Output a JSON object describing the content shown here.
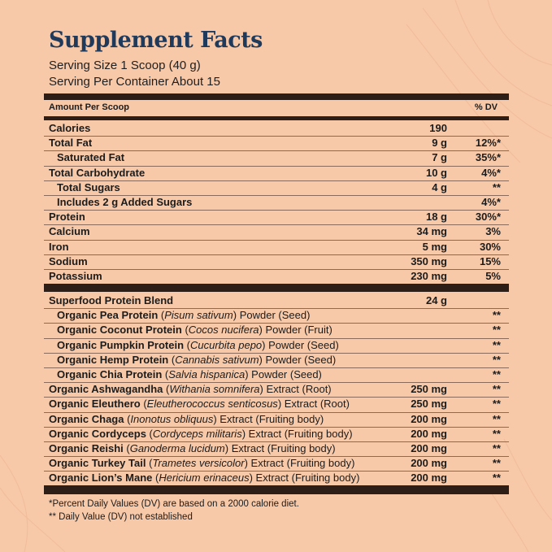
{
  "title": "Supplement Facts",
  "serving_size": "Serving Size 1 Scoop (40 g)",
  "servings_per_container": "Serving Per Container  About 15",
  "header": {
    "amount": "Amount Per Scoop",
    "dv": "% DV"
  },
  "nutrients": [
    {
      "name": "Calories",
      "amount": "190",
      "dv": "",
      "indent": false
    },
    {
      "name": "Total Fat",
      "amount": "9 g",
      "dv": "12%*",
      "indent": false
    },
    {
      "name": "Saturated Fat",
      "amount": "7 g",
      "dv": "35%*",
      "indent": true
    },
    {
      "name": "Total Carbohydrate",
      "amount": "10 g",
      "dv": "4%*",
      "indent": false
    },
    {
      "name": "Total Sugars",
      "amount": "4 g",
      "dv": "**",
      "indent": true
    },
    {
      "name": "Includes 2 g Added Sugars",
      "amount": "",
      "dv": "4%*",
      "indent": true
    },
    {
      "name": "Protein",
      "amount": "18 g",
      "dv": "30%*",
      "indent": false
    },
    {
      "name": "Calcium",
      "amount": "34 mg",
      "dv": "3%",
      "indent": false
    },
    {
      "name": "Iron",
      "amount": "5 mg",
      "dv": "30%",
      "indent": false
    },
    {
      "name": "Sodium",
      "amount": "350 mg",
      "dv": "15%",
      "indent": false
    },
    {
      "name": "Potassium",
      "amount": "230 mg",
      "dv": "5%",
      "indent": false
    }
  ],
  "blend": {
    "name": "Superfood Protein Blend",
    "amount": "24 g",
    "items": [
      {
        "bold": "Organic Pea Protein",
        "latin": "Pisum sativum",
        "rest": "Powder (Seed)",
        "amount": "",
        "dv": "**",
        "indent": true
      },
      {
        "bold": "Organic Coconut Protein",
        "latin": "Cocos nucifera",
        "rest": "Powder (Fruit)",
        "amount": "",
        "dv": "**",
        "indent": true
      },
      {
        "bold": "Organic Pumpkin Protein",
        "latin": "Cucurbita pepo",
        "rest": "Powder (Seed)",
        "amount": "",
        "dv": "**",
        "indent": true
      },
      {
        "bold": "Organic Hemp Protein",
        "latin": "Cannabis sativum",
        "rest": "Powder (Seed)",
        "amount": "",
        "dv": "**",
        "indent": true
      },
      {
        "bold": "Organic Chia Protein",
        "latin": "Salvia hispanica",
        "rest": "Powder (Seed)",
        "amount": "",
        "dv": "**",
        "indent": true
      },
      {
        "bold": "Organic Ashwagandha",
        "latin": "Withania somnifera",
        "rest": "Extract (Root)",
        "amount": "250 mg",
        "dv": "**",
        "indent": false
      },
      {
        "bold": "Organic Eleuthero",
        "latin": "Eleutherococcus senticosus",
        "rest": "Extract (Root)",
        "amount": "250 mg",
        "dv": "**",
        "indent": false
      },
      {
        "bold": "Organic Chaga",
        "latin": "Inonotus obliquus",
        "rest": "Extract (Fruiting body)",
        "amount": "200 mg",
        "dv": "**",
        "indent": false
      },
      {
        "bold": "Organic Cordyceps",
        "latin": "Cordyceps militaris",
        "rest": "Extract (Fruiting body)",
        "amount": "200 mg",
        "dv": "**",
        "indent": false
      },
      {
        "bold": "Organic Reishi",
        "latin": "Ganoderma lucidum",
        "rest": "Extract (Fruiting body)",
        "amount": "200 mg",
        "dv": "**",
        "indent": false
      },
      {
        "bold": "Organic Turkey Tail",
        "latin": "Trametes versicolor",
        "rest": "Extract (Fruiting body)",
        "amount": "200 mg",
        "dv": "**",
        "indent": false
      },
      {
        "bold": "Organic Lion’s Mane",
        "latin": "Hericium erinaceus",
        "rest": "Extract (Fruiting body)",
        "amount": "200 mg",
        "dv": "**",
        "indent": false
      }
    ]
  },
  "footnotes": {
    "note1": "Percent Daily Values (DV) are based on a 2000 calorie diet.",
    "note1_mark": "*",
    "note2": "** Daily Value (DV) not established"
  },
  "colors": {
    "background": "#f7c9a9",
    "title": "#1f3a5a",
    "bars": "#2d1e17"
  }
}
